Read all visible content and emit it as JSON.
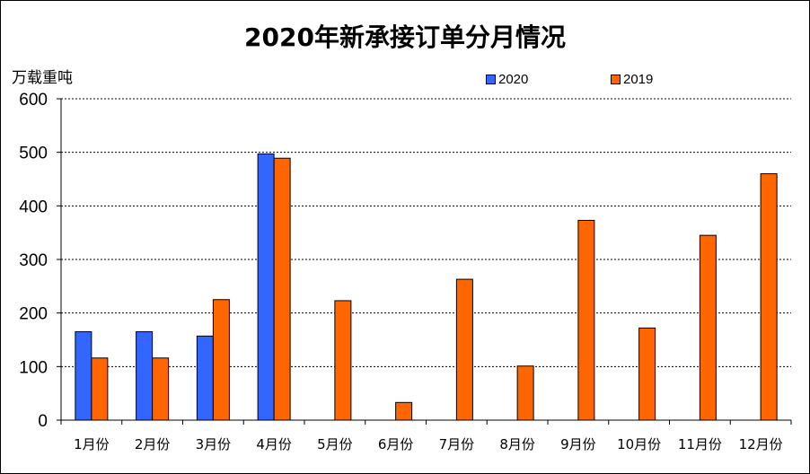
{
  "chart_data": {
    "type": "bar",
    "title": "2020年新承接订单分月情况",
    "ylabel": "万载重吨",
    "xlabel": "",
    "ylim": [
      0,
      600
    ],
    "yticks": [
      0,
      100,
      200,
      300,
      400,
      500,
      600
    ],
    "grid": true,
    "legend_position": "top",
    "categories": [
      "1月份",
      "2月份",
      "3月份",
      "4月份",
      "5月份",
      "6月份",
      "7月份",
      "8月份",
      "9月份",
      "10月份",
      "11月份",
      "12月份"
    ],
    "series": [
      {
        "name": "2020",
        "color": "#3366ff",
        "values": [
          165,
          165,
          157,
          497,
          null,
          null,
          null,
          null,
          null,
          null,
          null,
          null
        ]
      },
      {
        "name": "2019",
        "color": "#ff6600",
        "values": [
          116,
          116,
          225,
          489,
          223,
          33,
          263,
          101,
          373,
          172,
          345,
          460
        ]
      }
    ]
  }
}
